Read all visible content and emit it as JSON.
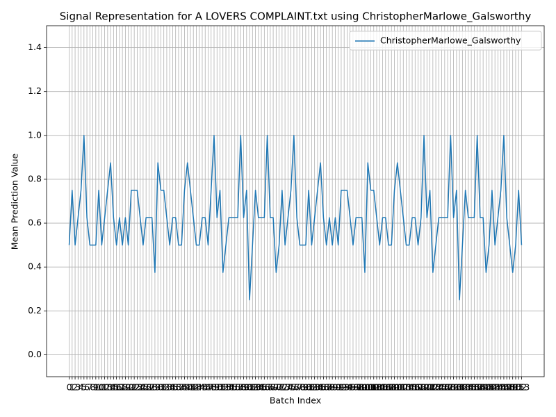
{
  "chart_data": {
    "type": "line",
    "title": "Signal Representation for A LOVERS COMPLAINT.txt using ChristopherMarlowe_Galsworthy",
    "xlabel": "Batch Index",
    "ylabel": "Mean Prediction Value",
    "x": [
      0,
      1,
      2,
      3,
      4,
      5,
      6,
      7,
      8,
      9,
      10,
      11,
      12,
      13,
      14,
      15,
      16,
      17,
      18,
      19,
      20,
      21,
      22,
      23,
      24,
      25,
      26,
      27,
      28,
      29,
      30,
      31,
      32,
      33,
      34,
      35,
      36,
      37,
      38,
      39,
      40,
      41,
      42,
      43,
      44,
      45,
      46,
      47,
      48,
      49,
      50,
      51,
      52,
      53,
      54,
      55,
      56,
      57,
      58,
      59,
      60,
      61,
      62,
      63,
      64,
      65,
      66,
      67,
      68,
      69,
      70,
      71,
      72,
      73,
      74,
      75,
      76,
      77,
      78,
      79,
      80,
      81,
      82,
      83,
      84,
      85,
      86,
      87,
      88,
      89,
      90,
      91,
      92,
      93,
      94,
      95,
      96,
      97,
      98,
      99,
      100,
      101,
      102,
      103,
      104,
      105,
      106,
      107,
      108,
      109,
      110,
      111,
      112,
      113,
      114,
      115,
      116,
      117,
      118,
      119,
      120,
      121,
      122,
      123,
      124,
      125,
      126,
      127,
      128,
      129,
      130,
      131,
      132,
      133,
      134,
      135,
      136,
      137,
      138,
      139,
      140,
      141,
      142,
      143,
      144,
      145,
      146,
      147,
      148,
      149,
      150,
      151,
      152,
      153
    ],
    "series": [
      {
        "name": "ChristopherMarlowe_Galsworthy",
        "color": "#1f77b4",
        "values": [
          0.5,
          0.75,
          0.5,
          0.625,
          0.75,
          1.0,
          0.625,
          0.5,
          0.5,
          0.5,
          0.75,
          0.5,
          0.625,
          0.75,
          0.875,
          0.625,
          0.5,
          0.625,
          0.5,
          0.625,
          0.5,
          0.75,
          0.75,
          0.75,
          0.625,
          0.5,
          0.625,
          0.625,
          0.625,
          0.375,
          0.875,
          0.75,
          0.75,
          0.625,
          0.5,
          0.625,
          0.625,
          0.5,
          0.5,
          0.75,
          0.875,
          0.75,
          0.625,
          0.5,
          0.5,
          0.625,
          0.625,
          0.5,
          0.75,
          1.0,
          0.625,
          0.75,
          0.375,
          0.5,
          0.625,
          0.625,
          0.625,
          0.625,
          1.0,
          0.625,
          0.75,
          0.25,
          0.5,
          0.75,
          0.625,
          0.625,
          0.625,
          1.0,
          0.625,
          0.625,
          0.375,
          0.5,
          0.75,
          0.5,
          0.625,
          0.75,
          1.0,
          0.625,
          0.5,
          0.5,
          0.5,
          0.75,
          0.5,
          0.625,
          0.75,
          0.875,
          0.625,
          0.5,
          0.625,
          0.5,
          0.625,
          0.5,
          0.75,
          0.75,
          0.75,
          0.625,
          0.5,
          0.625,
          0.625,
          0.625,
          0.375,
          0.875,
          0.75,
          0.75,
          0.625,
          0.5,
          0.625,
          0.625,
          0.5,
          0.5,
          0.75,
          0.875,
          0.75,
          0.625,
          0.5,
          0.5,
          0.625,
          0.625,
          0.5,
          0.625,
          1.0,
          0.625,
          0.75,
          0.375,
          0.5,
          0.625,
          0.625,
          0.625,
          0.625,
          1.0,
          0.625,
          0.75,
          0.25,
          0.5,
          0.75,
          0.625,
          0.625,
          0.625,
          1.0,
          0.625,
          0.625,
          0.375,
          0.5,
          0.75,
          0.5,
          0.625,
          0.75,
          1.0,
          0.625,
          0.5,
          0.375,
          0.5,
          0.75,
          0.5
        ]
      }
    ],
    "xlim": [
      -7.65,
      160.65
    ],
    "xticks": [
      0,
      1,
      2,
      3,
      4,
      5,
      6,
      7,
      8,
      9,
      10,
      11,
      12,
      13,
      14,
      15,
      16,
      17,
      18,
      19,
      20,
      21,
      22,
      23,
      24,
      25,
      26,
      27,
      28,
      29,
      30,
      31,
      32,
      33,
      34,
      35,
      36,
      37,
      38,
      39,
      40,
      41,
      42,
      43,
      44,
      45,
      46,
      47,
      48,
      49,
      50,
      51,
      52,
      53,
      54,
      55,
      56,
      57,
      58,
      59,
      60,
      61,
      62,
      63,
      64,
      65,
      66,
      67,
      68,
      69,
      70,
      71,
      72,
      73,
      74,
      75,
      76,
      77,
      78,
      79,
      80,
      81,
      82,
      83,
      84,
      85,
      86,
      87,
      88,
      89,
      90,
      91,
      92,
      93,
      94,
      95,
      96,
      97,
      98,
      99,
      100,
      101,
      102,
      103,
      104,
      105,
      106,
      107,
      108,
      109,
      110,
      111,
      112,
      113,
      114,
      115,
      116,
      117,
      118,
      119,
      120,
      121,
      122,
      123,
      124,
      125,
      126,
      127,
      128,
      129,
      130,
      131,
      132,
      133,
      134,
      135,
      136,
      137,
      138,
      139,
      140,
      141,
      142,
      143,
      144,
      145,
      146,
      147,
      148,
      149,
      150,
      151,
      152,
      153
    ],
    "ylim": [
      -0.1,
      1.5
    ],
    "yticks": [
      {
        "value": 0,
        "label": "0.0"
      },
      {
        "value": 0.2,
        "label": "0.2"
      },
      {
        "value": 0.4,
        "label": "0.4"
      },
      {
        "value": 0.6,
        "label": "0.6"
      },
      {
        "value": 0.8,
        "label": "0.8"
      },
      {
        "value": 1.0,
        "label": "1.0"
      },
      {
        "value": 1.2,
        "label": "1.2"
      },
      {
        "value": 1.4,
        "label": "1.4"
      }
    ],
    "grid": true,
    "legend": "upper right"
  }
}
